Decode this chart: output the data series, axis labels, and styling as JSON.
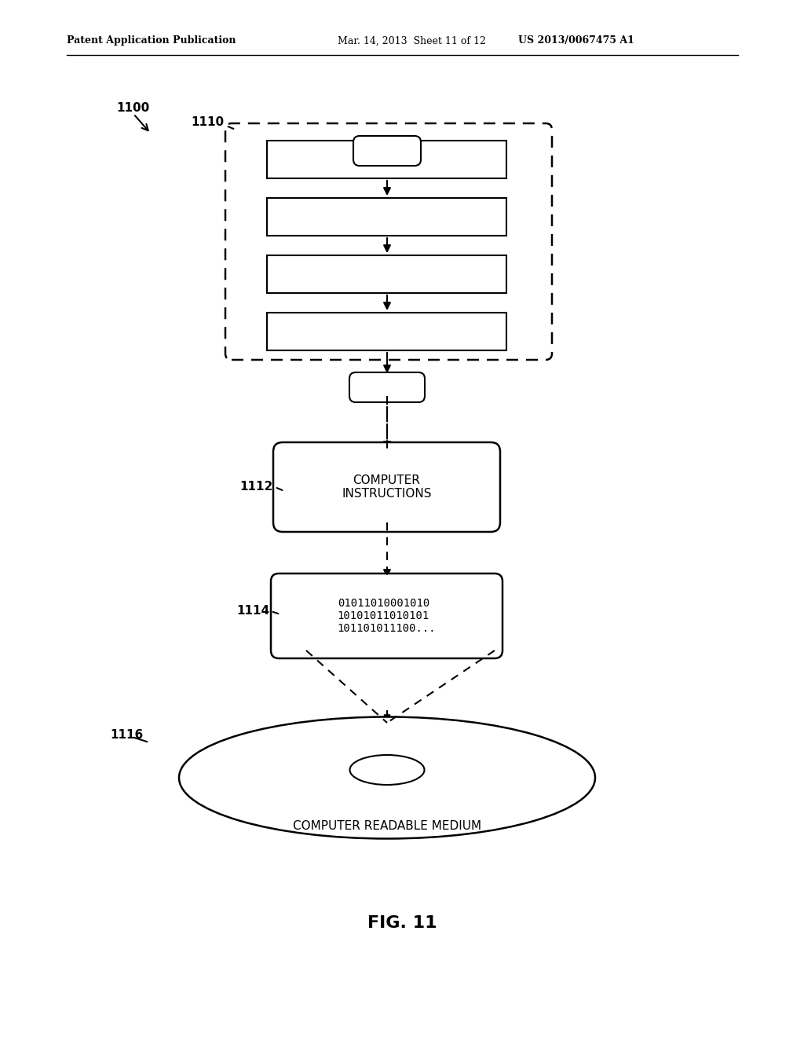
{
  "header_left": "Patent Application Publication",
  "header_mid": "Mar. 14, 2013  Sheet 11 of 12",
  "header_right": "US 2013/0067475 A1",
  "fig_label": "FIG. 11",
  "label_1100": "1100",
  "label_1110": "1110",
  "label_1112": "1112",
  "label_1114": "1114",
  "label_1116": "1116",
  "computer_instructions_text": "COMPUTER\nINSTRUCTIONS",
  "binary_text": "01011010001010\n10101011010101\n101101011100...",
  "disk_label": "COMPUTER READABLE MEDIUM",
  "bg_color": "#ffffff",
  "fg_color": "#000000"
}
